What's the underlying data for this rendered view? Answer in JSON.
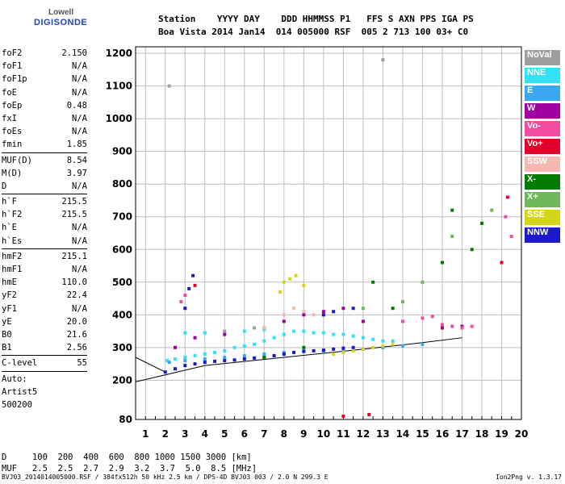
{
  "logo": {
    "line1": "Lowell",
    "line2": "DIGISONDE"
  },
  "header": {
    "line1": "Station    YYYY DAY    DDD HHMMSS P1   FFS S AXN PPS IGA PS",
    "line2": "Boa Vista 2014 Jan14  014 005000 RSF  005 2 713 100 03+ C0"
  },
  "params": [
    {
      "k": "foF2",
      "v": "2.150"
    },
    {
      "k": "foF1",
      "v": "N/A"
    },
    {
      "k": "foF1p",
      "v": "N/A"
    },
    {
      "k": "foE",
      "v": "N/A"
    },
    {
      "k": "foEp",
      "v": "0.48"
    },
    {
      "k": "fxI",
      "v": "N/A"
    },
    {
      "k": "foEs",
      "v": "N/A"
    },
    {
      "k": "fmin",
      "v": "1.85"
    },
    {
      "sep": true
    },
    {
      "k": "MUF(D)",
      "v": "8.54"
    },
    {
      "k": "M(D)",
      "v": "3.97"
    },
    {
      "k": "D",
      "v": "N/A"
    },
    {
      "sep": true
    },
    {
      "k": "h`F",
      "v": "215.5"
    },
    {
      "k": "h`F2",
      "v": "215.5"
    },
    {
      "k": "h`E",
      "v": "N/A"
    },
    {
      "k": "h`Es",
      "v": "N/A"
    },
    {
      "sep": true
    },
    {
      "k": "hmF2",
      "v": "215.1"
    },
    {
      "k": "hmF1",
      "v": "N/A"
    },
    {
      "k": "hmE",
      "v": "110.0"
    },
    {
      "k": "yF2",
      "v": "22.4"
    },
    {
      "k": "yF1",
      "v": "N/A"
    },
    {
      "k": "yE",
      "v": "20.0"
    },
    {
      "k": "B0",
      "v": "21.6"
    },
    {
      "k": "B1",
      "v": "2.56"
    },
    {
      "sep": true
    },
    {
      "k": "C-level",
      "v": "55"
    },
    {
      "sep": true
    },
    {
      "k": "Auto:",
      "v": ""
    },
    {
      "k": "Artist5",
      "v": ""
    },
    {
      "k": "500200",
      "v": ""
    }
  ],
  "legend": [
    {
      "label": "NoVal",
      "color": "#9e9e9e"
    },
    {
      "label": "NNE",
      "color": "#33e0f5"
    },
    {
      "label": "E",
      "color": "#3aa8f0"
    },
    {
      "label": "W",
      "color": "#a0009f"
    },
    {
      "label": "Vo-",
      "color": "#f04da0"
    },
    {
      "label": "Vo+",
      "color": "#e0002a"
    },
    {
      "label": "SSW",
      "color": "#f5b8b0"
    },
    {
      "label": "X-",
      "color": "#007a00"
    },
    {
      "label": "X+",
      "color": "#6db85a"
    },
    {
      "label": "SSE",
      "color": "#d4d41a"
    },
    {
      "label": "NNW",
      "color": "#1a1acc"
    }
  ],
  "footer": {
    "line1": "D     100  200  400  600  800 1000 1500 3000 [km]",
    "line2": "MUF   2.5  2.5  2.7  2.9  3.2  3.7  5.0  8.5 [MHz]",
    "line3": "BVJ03_2014014005000.RSF / 384fx512h 50 kHz 2.5 km / DPS-4D BVJ03 003 / 2.0 N 299.3 E",
    "version": "Ion2Png v. 1.3.17"
  },
  "chart_data": {
    "type": "scatter",
    "title": "",
    "xlabel": "",
    "ylabel": "",
    "xlim": [
      0.5,
      20
    ],
    "ylim": [
      80,
      1220
    ],
    "xticks": [
      1,
      2,
      3,
      4,
      5,
      6,
      7,
      8,
      9,
      10,
      11,
      12,
      13,
      14,
      15,
      16,
      17,
      18,
      19,
      20
    ],
    "yticks": [
      80,
      200,
      300,
      400,
      500,
      600,
      700,
      800,
      900,
      1000,
      1100,
      1200
    ],
    "grid": true,
    "legend_position": "right",
    "series": [
      {
        "name": "NNE",
        "color": "#33e0f5",
        "points": [
          [
            2.1,
            260
          ],
          [
            2.5,
            265
          ],
          [
            3,
            270
          ],
          [
            3.5,
            275
          ],
          [
            4,
            280
          ],
          [
            4.5,
            285
          ],
          [
            5,
            290
          ],
          [
            5.5,
            300
          ],
          [
            6,
            305
          ],
          [
            6.5,
            310
          ],
          [
            7,
            320
          ],
          [
            7.5,
            330
          ],
          [
            8,
            340
          ],
          [
            8.5,
            350
          ],
          [
            9,
            350
          ],
          [
            9.5,
            345
          ],
          [
            10,
            345
          ],
          [
            10.5,
            340
          ],
          [
            11,
            340
          ],
          [
            11.5,
            335
          ],
          [
            12,
            330
          ],
          [
            12.5,
            325
          ],
          [
            13,
            320
          ],
          [
            13.5,
            320
          ],
          [
            3,
            345
          ],
          [
            4,
            345
          ],
          [
            5,
            345
          ],
          [
            6,
            350
          ],
          [
            7,
            355
          ]
        ]
      },
      {
        "name": "E",
        "color": "#3aa8f0",
        "points": [
          [
            2.2,
            255
          ],
          [
            3,
            260
          ],
          [
            4,
            265
          ],
          [
            5,
            270
          ],
          [
            6,
            275
          ],
          [
            7,
            280
          ],
          [
            8,
            285
          ],
          [
            9,
            290
          ],
          [
            10,
            290
          ],
          [
            11,
            290
          ],
          [
            12,
            295
          ],
          [
            13,
            300
          ],
          [
            14,
            305
          ],
          [
            15,
            310
          ]
        ]
      },
      {
        "name": "NNW",
        "color": "#1a1acc",
        "points": [
          [
            2,
            225
          ],
          [
            2.5,
            235
          ],
          [
            3,
            245
          ],
          [
            3.5,
            250
          ],
          [
            4,
            255
          ],
          [
            4.5,
            258
          ],
          [
            5,
            260
          ],
          [
            5.5,
            262
          ],
          [
            6,
            265
          ],
          [
            6.5,
            268
          ],
          [
            7,
            270
          ],
          [
            7.5,
            275
          ],
          [
            8,
            280
          ],
          [
            8.5,
            285
          ],
          [
            9,
            288
          ],
          [
            9.5,
            290
          ],
          [
            10,
            292
          ],
          [
            10.5,
            295
          ],
          [
            11,
            298
          ],
          [
            11.5,
            300
          ],
          [
            3,
            420
          ],
          [
            3.2,
            480
          ],
          [
            3.4,
            520
          ],
          [
            10,
            400
          ],
          [
            10.5,
            410
          ],
          [
            11.5,
            420
          ]
        ]
      },
      {
        "name": "W",
        "color": "#a0009f",
        "points": [
          [
            2.5,
            300
          ],
          [
            3.5,
            330
          ],
          [
            5,
            340
          ],
          [
            7,
            360
          ],
          [
            8,
            380
          ],
          [
            9,
            400
          ],
          [
            10,
            410
          ],
          [
            11,
            420
          ],
          [
            12,
            380
          ],
          [
            16,
            360
          ],
          [
            17,
            365
          ]
        ]
      },
      {
        "name": "SSE",
        "color": "#d4d41a",
        "points": [
          [
            7.8,
            470
          ],
          [
            8,
            500
          ],
          [
            8.3,
            510
          ],
          [
            8.6,
            520
          ],
          [
            9,
            490
          ],
          [
            10.5,
            280
          ],
          [
            11,
            285
          ],
          [
            11.5,
            290
          ],
          [
            12,
            295
          ],
          [
            12.5,
            300
          ],
          [
            13,
            305
          ],
          [
            13.5,
            310
          ]
        ]
      },
      {
        "name": "SSW",
        "color": "#f5b8b0",
        "points": [
          [
            8,
            400
          ],
          [
            8.5,
            420
          ],
          [
            9,
            410
          ],
          [
            9.5,
            400
          ],
          [
            7,
            360
          ]
        ]
      },
      {
        "name": "Vo-",
        "color": "#f04da0",
        "points": [
          [
            14,
            380
          ],
          [
            15,
            390
          ],
          [
            15.5,
            395
          ],
          [
            16,
            370
          ],
          [
            16.5,
            365
          ],
          [
            17,
            360
          ],
          [
            17.5,
            365
          ],
          [
            2.8,
            440
          ],
          [
            3,
            460
          ],
          [
            19.2,
            700
          ],
          [
            19.5,
            640
          ]
        ]
      },
      {
        "name": "Vo+",
        "color": "#e0002a",
        "points": [
          [
            11,
            90
          ],
          [
            12.3,
            95
          ],
          [
            3.5,
            490
          ],
          [
            19.3,
            760
          ],
          [
            19,
            560
          ]
        ]
      },
      {
        "name": "X-",
        "color": "#007a00",
        "points": [
          [
            12.5,
            500
          ],
          [
            13.5,
            420
          ],
          [
            16,
            560
          ],
          [
            16.5,
            720
          ],
          [
            17.5,
            600
          ],
          [
            18,
            680
          ],
          [
            7,
            270
          ],
          [
            9,
            300
          ]
        ]
      },
      {
        "name": "X+",
        "color": "#6db85a",
        "points": [
          [
            12,
            420
          ],
          [
            14,
            440
          ],
          [
            15,
            500
          ],
          [
            16.5,
            640
          ],
          [
            18.5,
            720
          ]
        ]
      },
      {
        "name": "NoVal",
        "color": "#9e9e9e",
        "points": [
          [
            2.2,
            1100
          ],
          [
            13,
            1180
          ],
          [
            5,
            350
          ],
          [
            6.5,
            360
          ]
        ]
      }
    ],
    "fit_lines": [
      {
        "points": [
          [
            0.5,
            195
          ],
          [
            4,
            245
          ],
          [
            8,
            270
          ],
          [
            12,
            295
          ],
          [
            15,
            315
          ],
          [
            17,
            330
          ]
        ]
      },
      {
        "points": [
          [
            0.5,
            270
          ],
          [
            2,
            225
          ]
        ]
      }
    ]
  }
}
